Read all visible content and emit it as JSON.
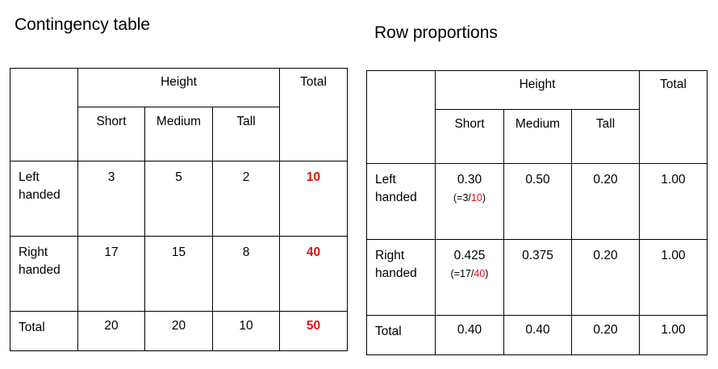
{
  "contingency": {
    "title": "Contingency table",
    "height_label": "Height",
    "total_label": "Total",
    "columns": [
      "Short",
      "Medium",
      "Tall"
    ],
    "rows": [
      {
        "label": "Left handed",
        "values": [
          "3",
          "5",
          "2"
        ],
        "total": "10"
      },
      {
        "label": "Right handed",
        "values": [
          "17",
          "15",
          "8"
        ],
        "total": "40"
      },
      {
        "label": "Total",
        "values": [
          "20",
          "20",
          "10"
        ],
        "total": "50"
      }
    ]
  },
  "proportions": {
    "title": "Row proportions",
    "height_label": "Height",
    "total_label": "Total",
    "columns": [
      "Short",
      "Medium",
      "Tall"
    ],
    "rows": [
      {
        "label": "Left handed",
        "values": [
          "0.30",
          "0.50",
          "0.20"
        ],
        "total": "1.00",
        "note": {
          "prefix": "(=3/",
          "denominator": "10",
          "suffix": ")"
        }
      },
      {
        "label": "Right handed",
        "values": [
          "0.425",
          "0.375",
          "0.20"
        ],
        "total": "1.00",
        "note": {
          "prefix": "(=17/",
          "denominator": "40",
          "suffix": ")"
        }
      },
      {
        "label": "Total",
        "values": [
          "0.40",
          "0.40",
          "0.20"
        ],
        "total": "1.00"
      }
    ]
  },
  "colors": {
    "highlight": "#e01010",
    "border": "#000000",
    "text": "#000000"
  }
}
